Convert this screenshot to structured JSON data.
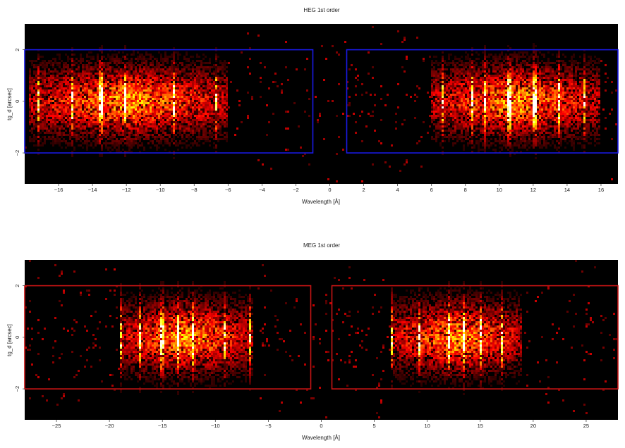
{
  "chart_data": [
    {
      "type": "heatmap",
      "title": "HEG 1st order",
      "xlabel": "Wavelength [Å]",
      "ylabel": "tg_d [arcsec]",
      "xlim": [
        -18.0,
        17.0
      ],
      "ylim": [
        -3.2,
        3.0
      ],
      "x_ticks": [
        -16,
        -14,
        -12,
        -10,
        -8,
        -6,
        -4,
        -2,
        0,
        2,
        4,
        6,
        8,
        10,
        12,
        14,
        16
      ],
      "x_tick_labels": [
        "−16",
        "−14",
        "−12",
        "−10",
        "−8",
        "−6",
        "−4",
        "−2",
        "0",
        "2",
        "4",
        "6",
        "8",
        "10",
        "12",
        "14",
        "16"
      ],
      "y_ticks": [
        -2,
        0,
        2
      ],
      "y_tick_labels": [
        "−2",
        "0",
        "2"
      ],
      "colormap": "hot",
      "background": "#000000",
      "extraction_regions": [
        {
          "x_min": -18.0,
          "x_max": -1.0,
          "y_min": -2.0,
          "y_max": 2.0
        },
        {
          "x_min": 1.0,
          "x_max": 17.0,
          "y_min": -2.0,
          "y_max": 2.0
        }
      ],
      "region_color": "#1a1ae6",
      "emission_bands": [
        {
          "x_min": -17.8,
          "x_max": -6.0
        },
        {
          "x_min": 6.0,
          "x_max": 16.0
        }
      ],
      "bright_lines": [
        -17.2,
        -15.2,
        -13.5,
        -12.1,
        -9.2,
        -6.7,
        6.7,
        8.4,
        9.2,
        10.6,
        12.1,
        13.5,
        15.0
      ]
    },
    {
      "type": "heatmap",
      "title": "MEG 1st order",
      "xlabel": "Wavelength [Å]",
      "ylabel": "tg_d [arcsec]",
      "xlim": [
        -28.0,
        28.0
      ],
      "ylim": [
        -3.2,
        3.0
      ],
      "x_ticks": [
        -25,
        -20,
        -15,
        -10,
        -5,
        0,
        5,
        10,
        15,
        20,
        25
      ],
      "x_tick_labels": [
        "−25",
        "−20",
        "−15",
        "−10",
        "−5",
        "0",
        "5",
        "10",
        "15",
        "20",
        "25"
      ],
      "y_ticks": [
        -2,
        0,
        2
      ],
      "y_tick_labels": [
        "−2",
        "0",
        "2"
      ],
      "colormap": "hot",
      "background": "#000000",
      "extraction_regions": [
        {
          "x_min": -28.0,
          "x_max": -1.0,
          "y_min": -2.0,
          "y_max": 2.0
        },
        {
          "x_min": 1.0,
          "x_max": 28.0,
          "y_min": -2.0,
          "y_max": 2.0
        }
      ],
      "region_color": "#c81414",
      "emission_bands": [
        {
          "x_min": -19.0,
          "x_max": -6.5
        },
        {
          "x_min": 6.5,
          "x_max": 19.0
        }
      ],
      "bright_lines": [
        -19.0,
        -17.1,
        -15.0,
        -13.5,
        -12.1,
        -9.2,
        -6.7,
        6.7,
        9.2,
        12.1,
        13.5,
        15.0,
        17.1,
        19.0
      ]
    }
  ]
}
